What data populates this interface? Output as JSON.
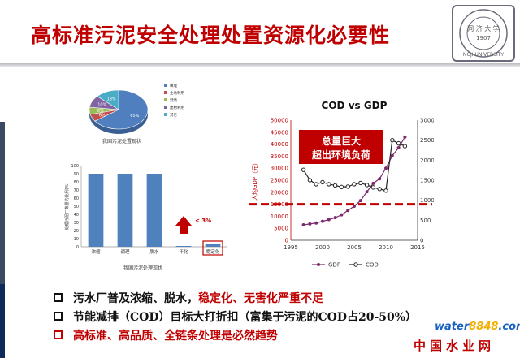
{
  "title": "高标准污泥安全处理处置资源化必要性",
  "logo": {
    "text": "同 济 大 学",
    "year": "1907",
    "arc_text": "NGJI UNIVERSITY"
  },
  "pie": {
    "caption": "我国污泥处置现状",
    "slices": [
      {
        "label": "填埋",
        "value": 65,
        "color": "#4f7fbf"
      },
      {
        "label": "土地利用",
        "value": 6,
        "color": "#c0504d"
      },
      {
        "label": "焚烧",
        "value": 6,
        "color": "#9bbb59"
      },
      {
        "label": "建材利用",
        "value": 10,
        "color": "#8064a2"
      },
      {
        "label": "其它",
        "value": 13,
        "color": "#4bacc6"
      }
    ],
    "slice_labels": [
      "65%",
      "6%",
      "6%",
      "10%",
      "13%"
    ]
  },
  "bar": {
    "caption": "我国污泥处理现状",
    "ylabel": "处理污泥厂数量的比例(%)",
    "annotation": "< 3%",
    "chart_data": {
      "type": "bar",
      "categories": [
        "浓缩",
        "调理",
        "脱水",
        "干化",
        "稳定化"
      ],
      "values": [
        90,
        90,
        90,
        1,
        3
      ],
      "ylim": [
        0,
        100
      ],
      "yticks": [
        "0",
        "10",
        "20",
        "30",
        "40",
        "50",
        "60",
        "70",
        "80",
        "90",
        "100"
      ]
    }
  },
  "cod": {
    "chart_data": {
      "type": "line",
      "title": "COD vs GDP",
      "ylabel_left": "人均GDP（元）",
      "ylabel_right": "COD排放量（万吨/a）",
      "xlim": [
        1995,
        2015
      ],
      "ylim_left": [
        0,
        50000
      ],
      "ylim_right": [
        0,
        3000
      ],
      "xticks": [
        "1995",
        "2000",
        "2005",
        "2010",
        "2015"
      ],
      "yticks_left": [
        "0",
        "5000",
        "10000",
        "15000",
        "20000",
        "25000",
        "30000",
        "35000",
        "40000",
        "45000",
        "50000"
      ],
      "yticks_right": [
        "0",
        "500",
        "1000",
        "1500",
        "2000",
        "2500",
        "3000"
      ],
      "series": [
        {
          "name": "GDP",
          "x": [
            1997,
            1998,
            1999,
            2000,
            2001,
            2002,
            2003,
            2004,
            2005,
            2006,
            2007,
            2008,
            2009,
            2010,
            2011,
            2012,
            2013
          ],
          "y": [
            6400,
            6800,
            7200,
            7900,
            8600,
            9400,
            10600,
            12400,
            14200,
            16500,
            20200,
            23700,
            25600,
            30000,
            35200,
            38500,
            43000
          ]
        },
        {
          "name": "COD",
          "x": [
            1997,
            1998,
            1999,
            2000,
            2001,
            2002,
            2003,
            2004,
            2005,
            2006,
            2007,
            2008,
            2009,
            2010,
            2011,
            2012,
            2013
          ],
          "y": [
            1760,
            1500,
            1400,
            1450,
            1400,
            1370,
            1330,
            1340,
            1400,
            1430,
            1380,
            1320,
            1280,
            1240,
            2500,
            2420,
            2350
          ]
        }
      ],
      "threshold_y": 15000,
      "callout": [
        "总量巨大",
        "超出环境负荷"
      ]
    }
  },
  "bullets": [
    {
      "plain": "污水厂普及浓缩、脱水，",
      "emph": "稳定化、无害化严重不足",
      "red_box": false,
      "all_red": false
    },
    {
      "plain": "节能减排（COD）目标大打折扣（富集于污泥的COD占20-50%）",
      "emph": "",
      "red_box": false,
      "all_red": false
    },
    {
      "plain": "高标准、高品质、全链条处理是必然趋势",
      "emph": "",
      "red_box": true,
      "all_red": true
    }
  ],
  "watermark": {
    "brand_a": "water",
    "brand_b": "8848",
    "brand_c": ".com",
    "cn": "中国水业网"
  }
}
